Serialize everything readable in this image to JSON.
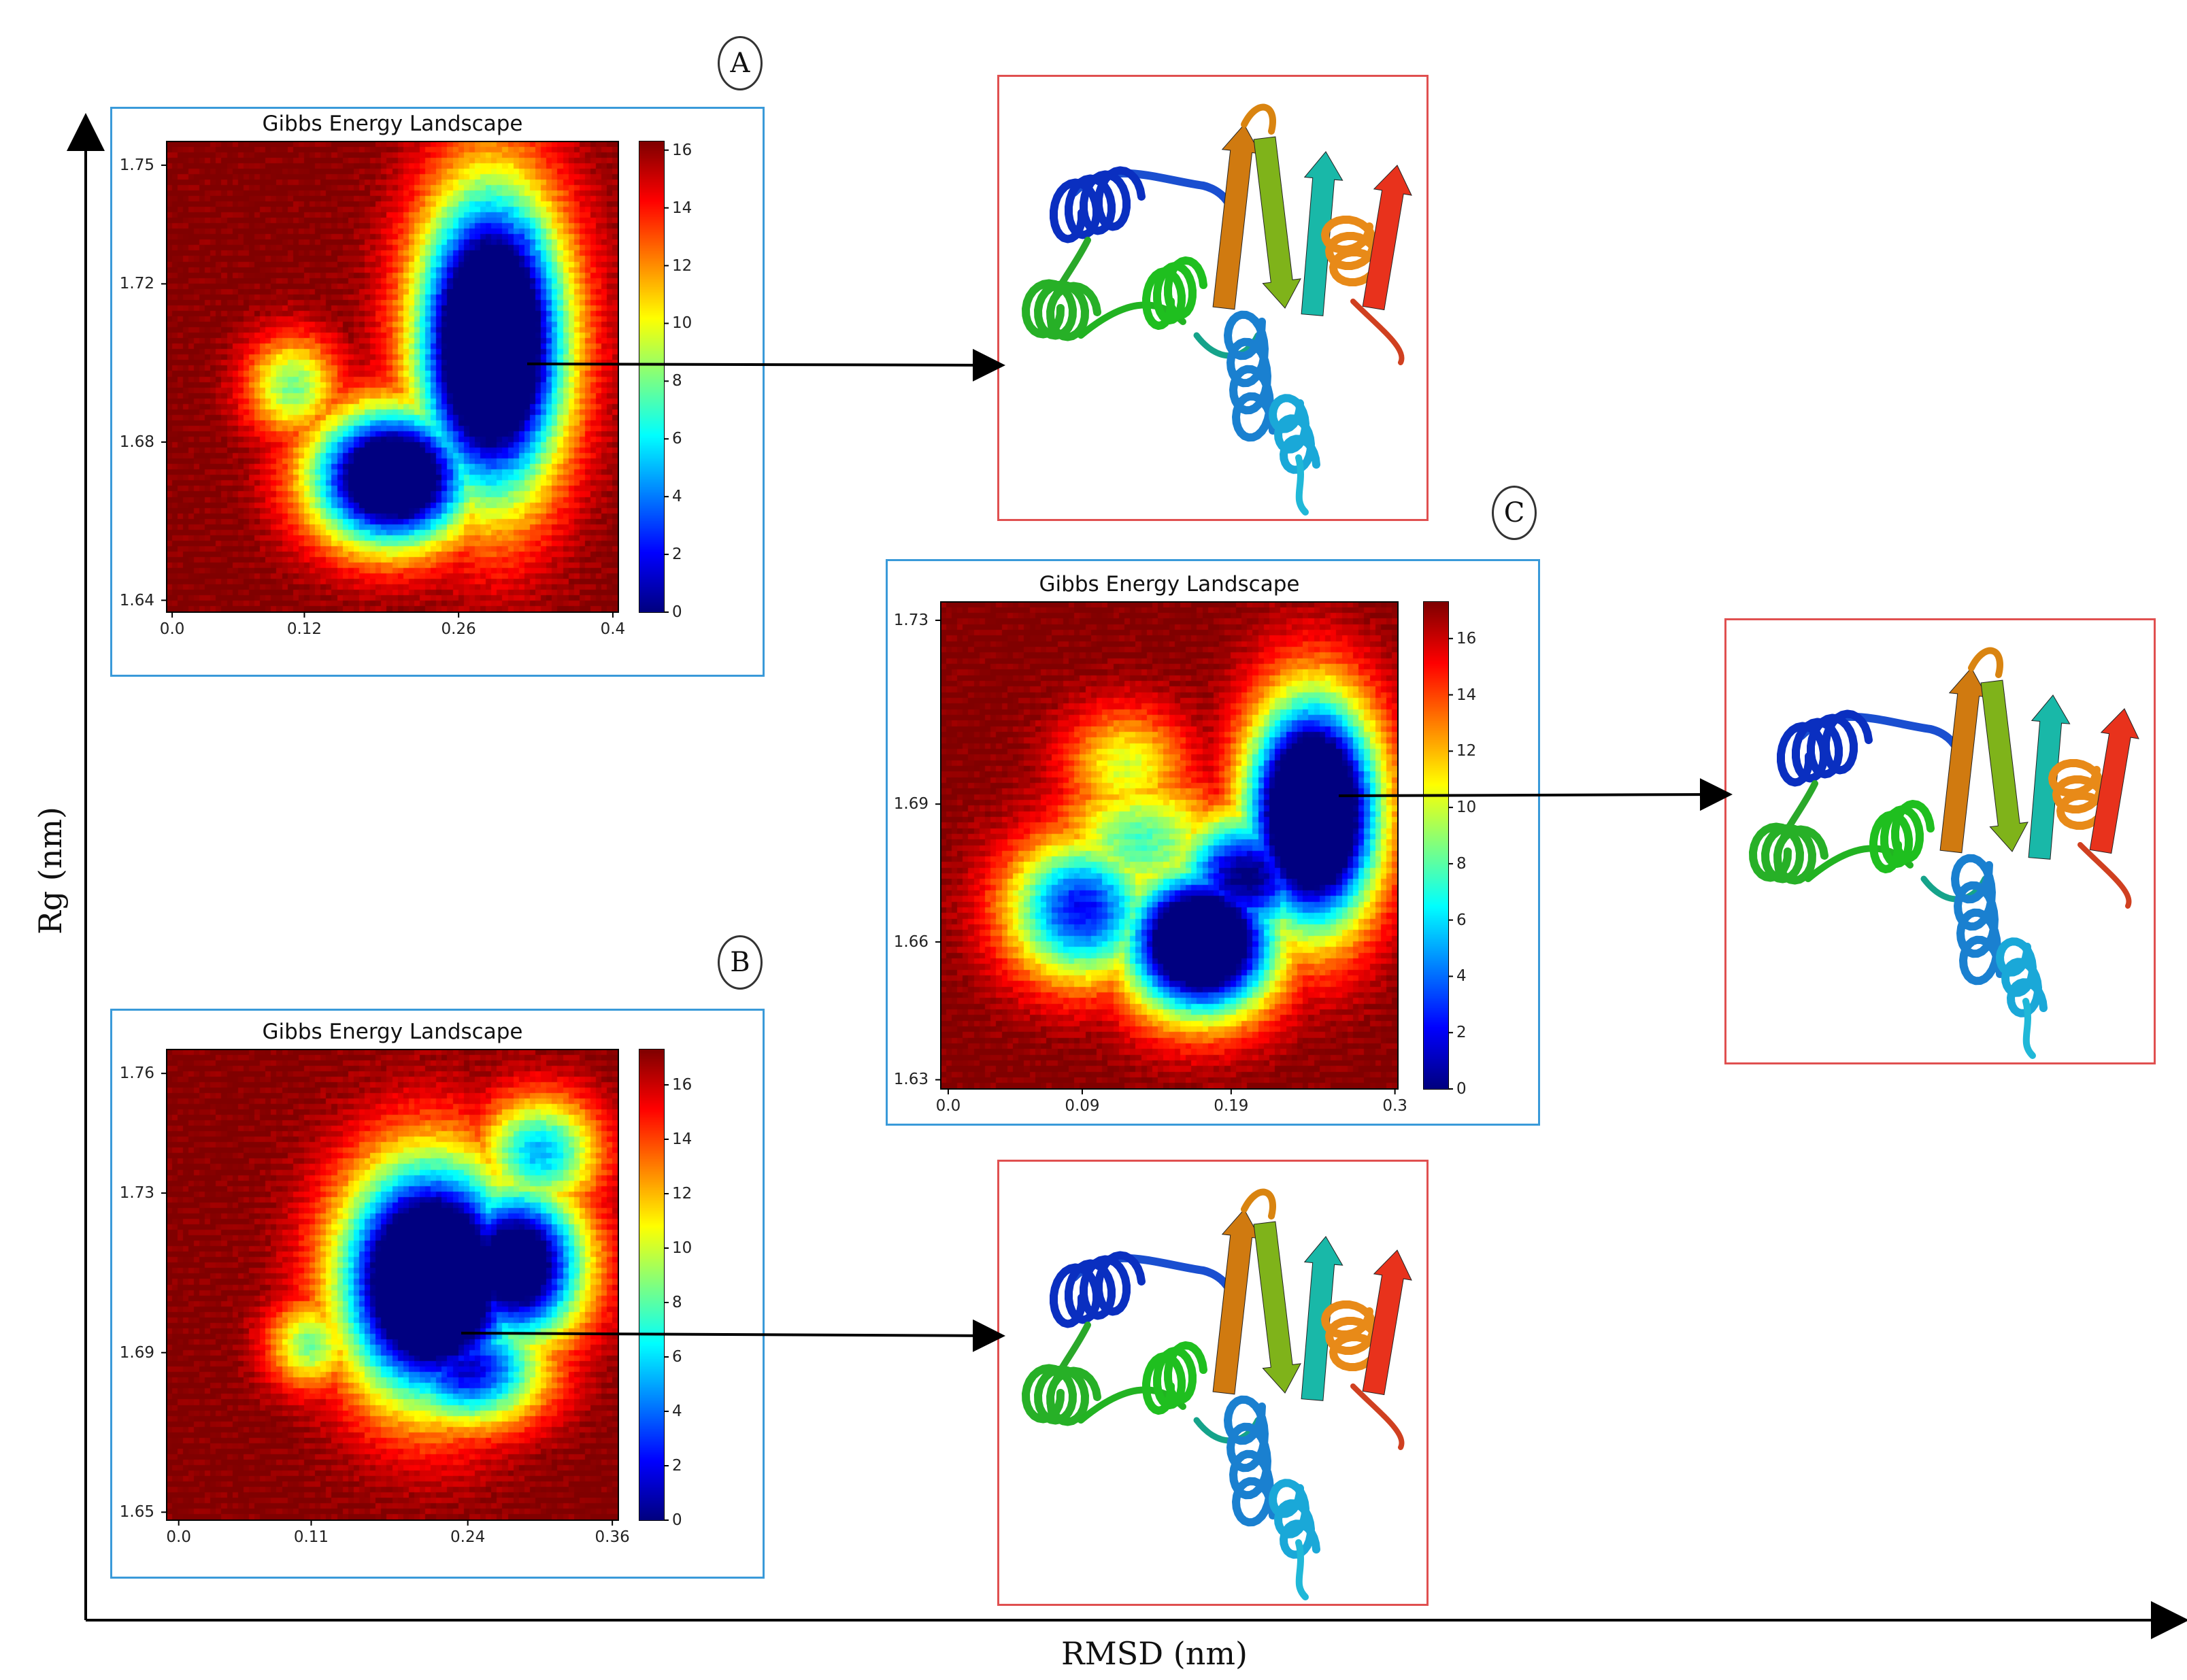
{
  "figure": {
    "x_axis_title": "RMSD (nm)",
    "y_axis_title": "Rg (nm)"
  },
  "colormap": "jet",
  "structure_icon": "protein-ribbon-structure",
  "chart_data": [
    {
      "id": "A",
      "type": "heatmap",
      "title": "Gibbs Energy Landscape",
      "xlabel": "",
      "ylabel": "",
      "x_ticks": [
        "0.0",
        "0.12",
        "0.26",
        "0.4"
      ],
      "y_ticks": [
        "1.64",
        "1.68",
        "1.72",
        "1.75"
      ],
      "x_tick_values": [
        0.0,
        0.12,
        0.26,
        0.4
      ],
      "y_tick_values": [
        1.64,
        1.68,
        1.72,
        1.75
      ],
      "xlim": [
        -0.005,
        0.405
      ],
      "ylim": [
        1.637,
        1.756
      ],
      "colorbar_ticks": [
        "0",
        "2",
        "4",
        "6",
        "8",
        "10",
        "12",
        "14",
        "16"
      ],
      "colorbar_range": [
        0,
        16.3
      ],
      "max_energy": 16.3,
      "minima": [
        {
          "x": 0.29,
          "y": 1.705,
          "sx": 0.045,
          "sy": 0.026,
          "depth": 16.3
        },
        {
          "x": 0.2,
          "y": 1.671,
          "sx": 0.05,
          "sy": 0.012,
          "depth": 14.2
        },
        {
          "x": 0.31,
          "y": 1.728,
          "sx": 0.03,
          "sy": 0.011,
          "depth": 9
        },
        {
          "x": 0.11,
          "y": 1.694,
          "sx": 0.03,
          "sy": 0.009,
          "depth": 5.2
        }
      ]
    },
    {
      "id": "B",
      "type": "heatmap",
      "title": "Gibbs Energy Landscape",
      "xlabel": "",
      "ylabel": "",
      "x_ticks": [
        "0.0",
        "0.11",
        "0.24",
        "0.36"
      ],
      "y_ticks": [
        "1.65",
        "1.69",
        "1.73",
        "1.76"
      ],
      "x_tick_values": [
        0.0,
        0.11,
        0.24,
        0.36
      ],
      "y_tick_values": [
        1.65,
        1.69,
        1.73,
        1.76
      ],
      "xlim": [
        -0.01,
        0.365
      ],
      "ylim": [
        1.648,
        1.766
      ],
      "colorbar_ticks": [
        "0",
        "2",
        "4",
        "6",
        "8",
        "10",
        "12",
        "14",
        "16"
      ],
      "colorbar_range": [
        0,
        17.3
      ],
      "max_energy": 17.3,
      "minima": [
        {
          "x": 0.21,
          "y": 1.708,
          "sx": 0.05,
          "sy": 0.02,
          "depth": 17.3
        },
        {
          "x": 0.28,
          "y": 1.712,
          "sx": 0.04,
          "sy": 0.014,
          "depth": 13.5
        },
        {
          "x": 0.24,
          "y": 1.686,
          "sx": 0.045,
          "sy": 0.01,
          "depth": 10
        },
        {
          "x": 0.3,
          "y": 1.74,
          "sx": 0.035,
          "sy": 0.01,
          "depth": 7.5
        },
        {
          "x": 0.11,
          "y": 1.692,
          "sx": 0.025,
          "sy": 0.008,
          "depth": 5.5
        }
      ]
    },
    {
      "id": "C",
      "type": "heatmap",
      "title": "Gibbs Energy Landscape",
      "xlabel": "",
      "ylabel": "",
      "x_ticks": [
        "0.0",
        "0.09",
        "0.19",
        "0.3"
      ],
      "y_ticks": [
        "1.63",
        "1.66",
        "1.69",
        "1.73"
      ],
      "x_tick_values": [
        0.0,
        0.09,
        0.19,
        0.3
      ],
      "y_tick_values": [
        1.63,
        1.66,
        1.69,
        1.73
      ],
      "xlim": [
        -0.005,
        0.302
      ],
      "ylim": [
        1.628,
        1.734
      ],
      "colorbar_ticks": [
        "0",
        "2",
        "4",
        "6",
        "8",
        "10",
        "12",
        "14",
        "16"
      ],
      "colorbar_range": [
        0,
        17.3
      ],
      "max_energy": 17.3,
      "minima": [
        {
          "x": 0.245,
          "y": 1.688,
          "sx": 0.03,
          "sy": 0.017,
          "depth": 17.3
        },
        {
          "x": 0.17,
          "y": 1.66,
          "sx": 0.035,
          "sy": 0.011,
          "depth": 16
        },
        {
          "x": 0.2,
          "y": 1.674,
          "sx": 0.035,
          "sy": 0.01,
          "depth": 11
        },
        {
          "x": 0.09,
          "y": 1.667,
          "sx": 0.035,
          "sy": 0.011,
          "depth": 9.5
        },
        {
          "x": 0.13,
          "y": 1.682,
          "sx": 0.04,
          "sy": 0.01,
          "depth": 6
        },
        {
          "x": 0.12,
          "y": 1.698,
          "sx": 0.03,
          "sy": 0.009,
          "depth": 4.5
        }
      ]
    }
  ]
}
